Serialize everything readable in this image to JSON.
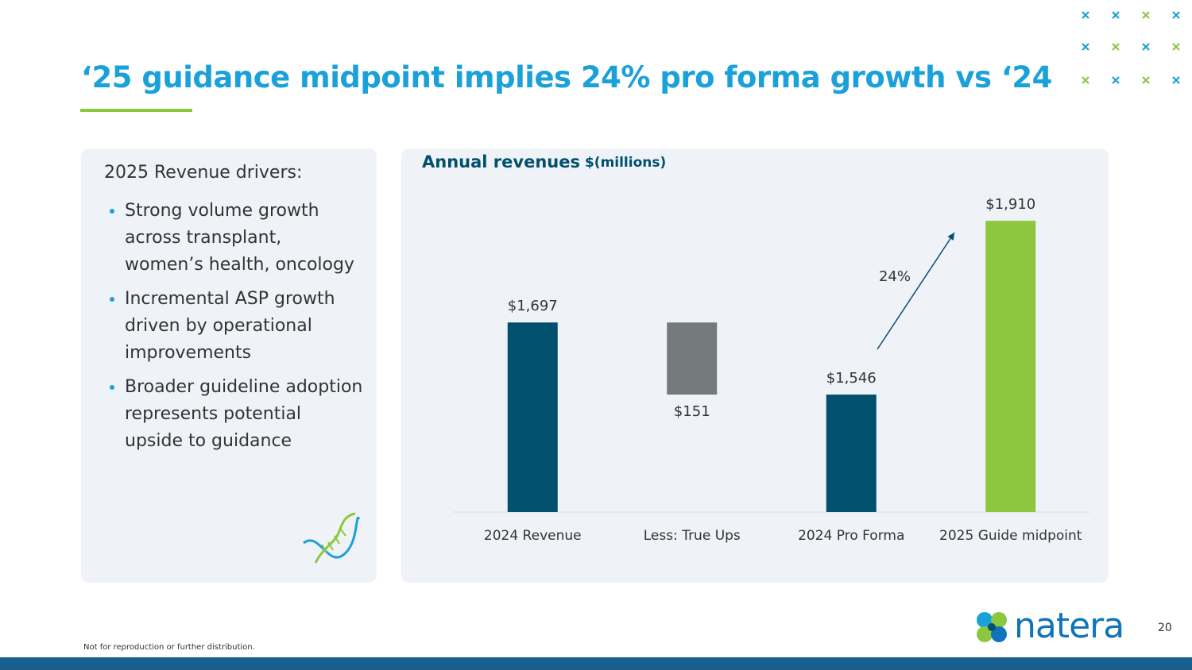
{
  "header": {
    "title": "‘25 guidance midpoint implies 24% pro forma growth vs ‘24"
  },
  "drivers": {
    "heading": "2025 Revenue drivers:",
    "items": [
      "Strong volume growth across transplant, women’s health, oncology",
      "Incremental ASP growth driven by operational improvements",
      "Broader guideline adoption represents potential upside to guidance"
    ]
  },
  "chart_data": {
    "type": "waterfall",
    "title": "Annual revenues",
    "subtitle": "$(millions)",
    "categories": [
      "2024 Revenue",
      "Less: True Ups",
      "2024 Pro Forma",
      "2025 Guide midpoint"
    ],
    "values": [
      1697,
      -151,
      1546,
      1910
    ],
    "value_labels": [
      "$1,697",
      "$151",
      "$1,546",
      "$1,910"
    ],
    "measures": [
      "total",
      "relative",
      "total",
      "total"
    ],
    "colors": [
      "#00506e",
      "#757b7c",
      "#00506e",
      "#8dc63f"
    ],
    "ylim": [
      1300,
      2000
    ],
    "annotation": "24%"
  },
  "footer": {
    "note": "Not for reproduction or further distribution.",
    "page": "20",
    "logo": "natera"
  }
}
